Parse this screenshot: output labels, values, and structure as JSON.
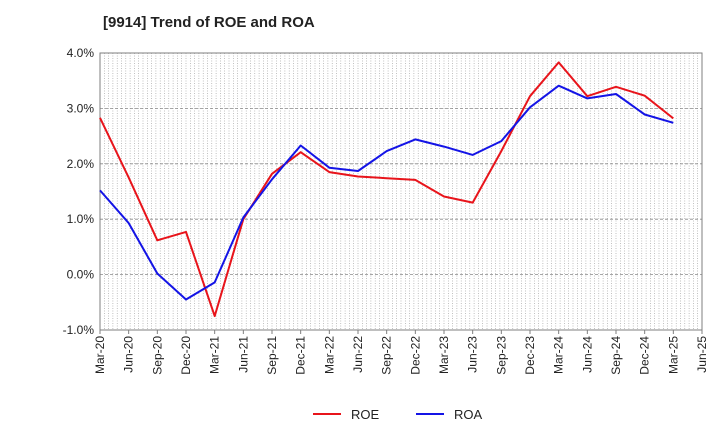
{
  "chart_data": {
    "type": "line",
    "title": "[9914]  Trend of ROE and ROA",
    "xlabel": "",
    "ylabel": "",
    "x": [
      "Mar-20",
      "Jun-20",
      "Sep-20",
      "Dec-20",
      "Mar-21",
      "Jun-21",
      "Sep-21",
      "Dec-21",
      "Mar-22",
      "Jun-22",
      "Sep-22",
      "Dec-22",
      "Mar-23",
      "Jun-23",
      "Sep-23",
      "Dec-23",
      "Mar-24",
      "Jun-24",
      "Sep-24",
      "Dec-24",
      "Mar-25",
      "Jun-25"
    ],
    "ylim": [
      -1.0,
      4.0
    ],
    "yticks": [
      4.0,
      3.0,
      2.0,
      1.0,
      0.0,
      -1.0
    ],
    "ytick_labels": [
      "4.0%",
      "3.0%",
      "2.0%",
      "1.0%",
      "0.0%",
      "-1.0%"
    ],
    "grid": true,
    "legend_position": "bottom-center",
    "series": [
      {
        "name": "ROE",
        "color": "#e8141b",
        "values": [
          2.83,
          1.75,
          0.62,
          0.77,
          -0.75,
          1.0,
          1.82,
          2.21,
          1.85,
          1.77,
          1.74,
          1.71,
          1.41,
          1.3,
          2.23,
          3.22,
          3.83,
          3.22,
          3.39,
          3.23,
          2.82,
          null
        ]
      },
      {
        "name": "ROA",
        "color": "#1414e6",
        "values": [
          1.52,
          0.93,
          0.02,
          -0.45,
          -0.14,
          1.03,
          1.72,
          2.33,
          1.93,
          1.87,
          2.23,
          2.44,
          2.31,
          2.16,
          2.41,
          3.02,
          3.41,
          3.18,
          3.26,
          2.89,
          2.74,
          null
        ]
      }
    ]
  }
}
